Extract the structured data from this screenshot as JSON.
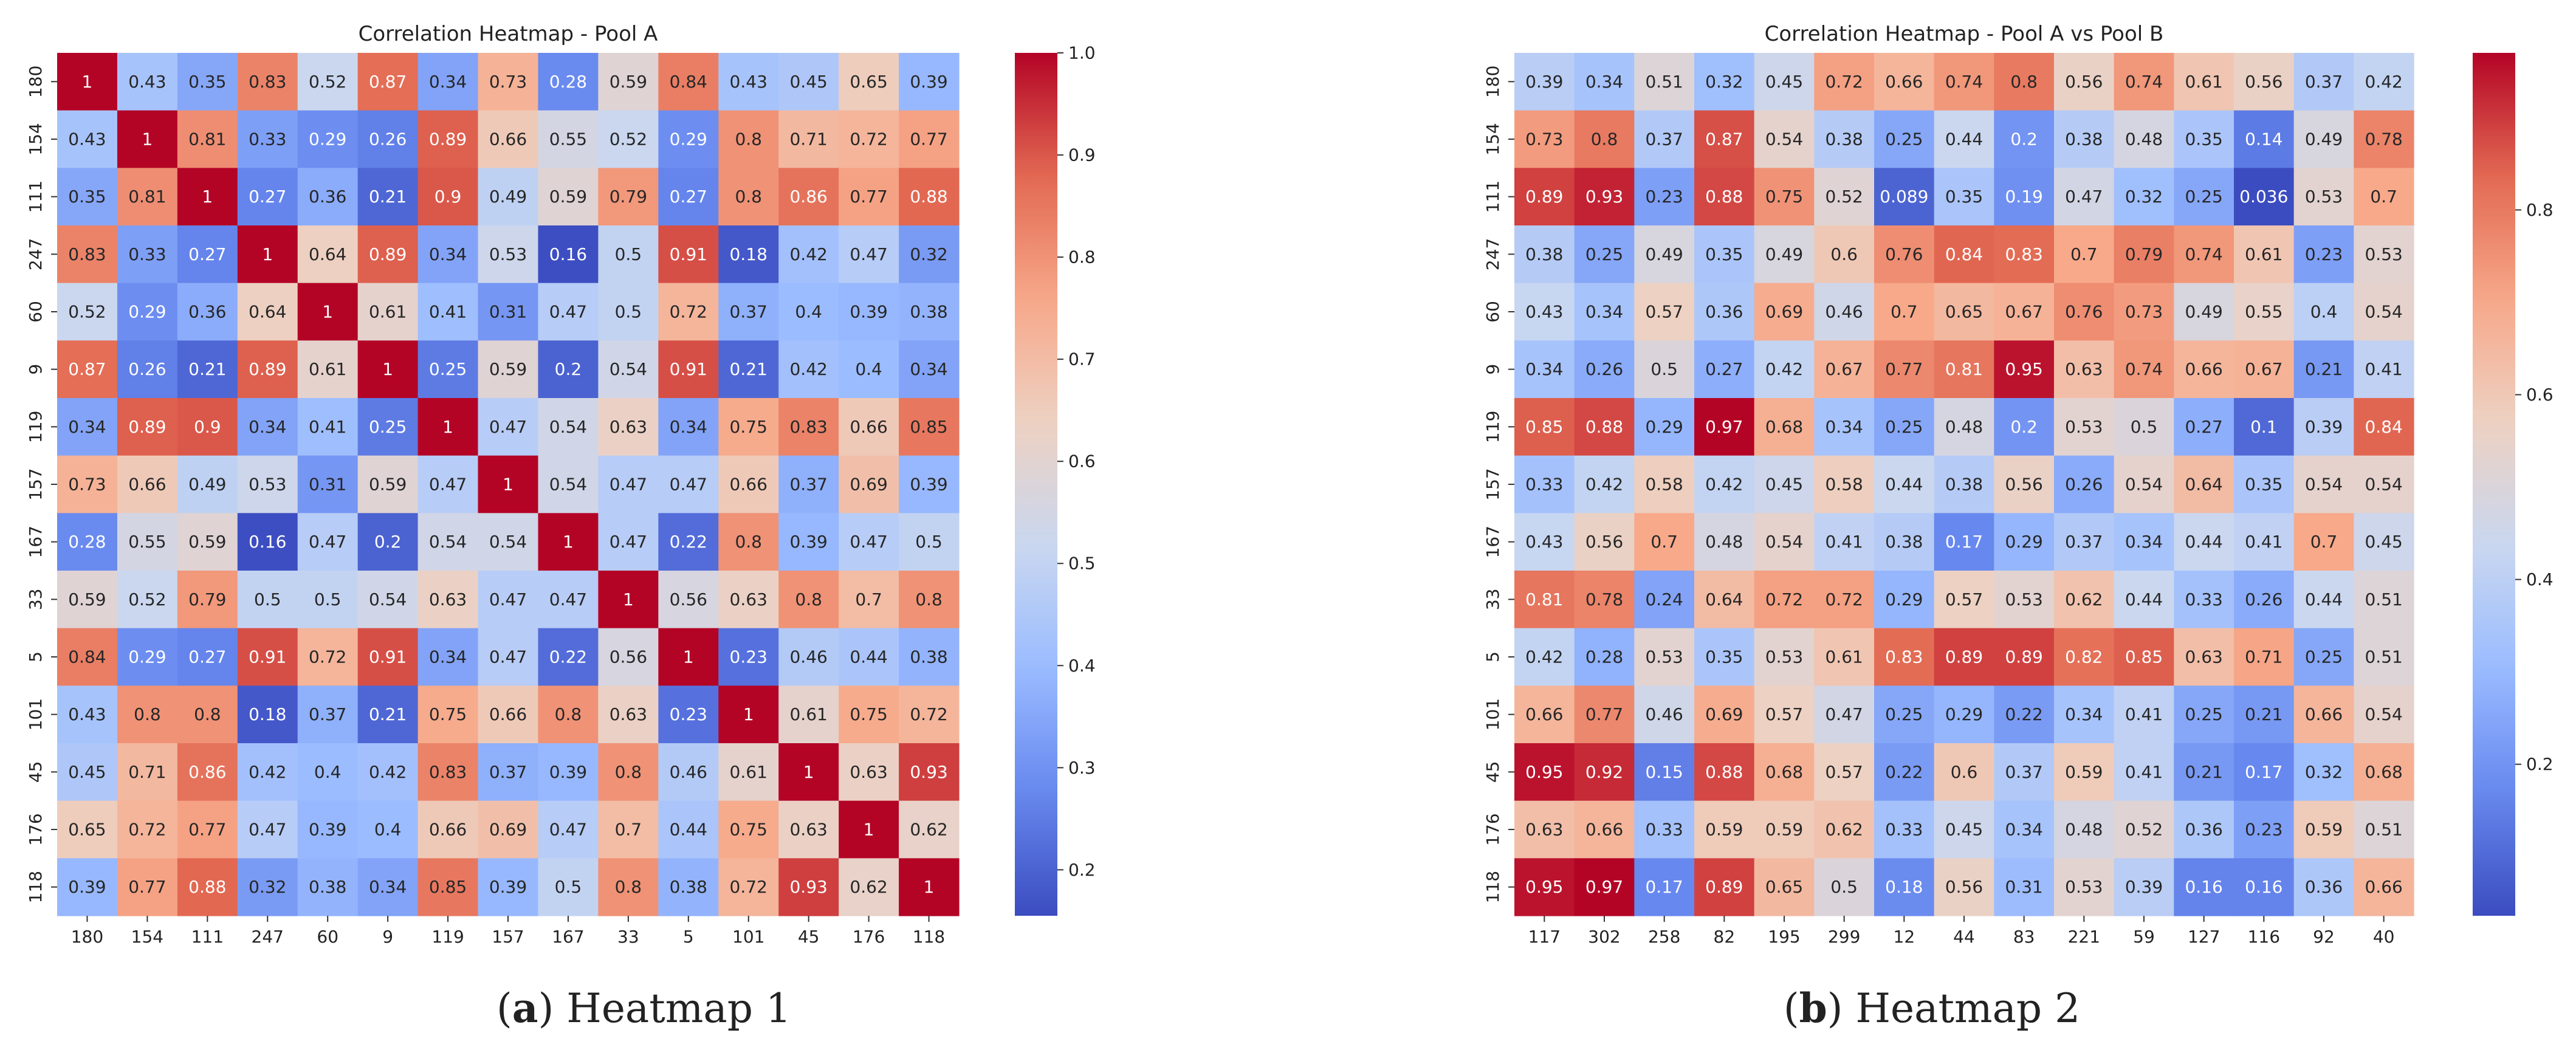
{
  "captions": [
    {
      "letter": "a",
      "text": "Heatmap 1"
    },
    {
      "letter": "b",
      "text": "Heatmap 2"
    }
  ],
  "colormap": {
    "name": "coolwarm",
    "stops": [
      "#3b4cc0",
      "#6788ee",
      "#9abbff",
      "#c9d7f0",
      "#edd1c2",
      "#f7a889",
      "#e26952",
      "#b40426"
    ]
  },
  "chart_data": [
    {
      "type": "heatmap",
      "title": "Correlation Heatmap - Pool A",
      "rows": [
        "180",
        "154",
        "111",
        "247",
        "60",
        "9",
        "119",
        "157",
        "167",
        "33",
        "5",
        "101",
        "45",
        "176",
        "118"
      ],
      "cols": [
        "180",
        "154",
        "111",
        "247",
        "60",
        "9",
        "119",
        "157",
        "167",
        "33",
        "5",
        "101",
        "45",
        "176",
        "118"
      ],
      "vmin": 0.155,
      "vmax": 1.0,
      "colorbar_ticks": [
        "0.2",
        "0.3",
        "0.4",
        "0.5",
        "0.6",
        "0.7",
        "0.8",
        "0.9",
        "1.0"
      ],
      "values": [
        [
          1,
          0.43,
          0.35,
          0.83,
          0.52,
          0.87,
          0.34,
          0.73,
          0.28,
          0.59,
          0.84,
          0.43,
          0.45,
          0.65,
          0.39
        ],
        [
          0.43,
          1,
          0.81,
          0.33,
          0.29,
          0.26,
          0.89,
          0.66,
          0.55,
          0.52,
          0.29,
          0.8,
          0.71,
          0.72,
          0.77
        ],
        [
          0.35,
          0.81,
          1,
          0.27,
          0.36,
          0.21,
          0.9,
          0.49,
          0.59,
          0.79,
          0.27,
          0.8,
          0.86,
          0.77,
          0.88
        ],
        [
          0.83,
          0.33,
          0.27,
          1,
          0.64,
          0.89,
          0.34,
          0.53,
          0.16,
          0.5,
          0.91,
          0.18,
          0.42,
          0.47,
          0.32
        ],
        [
          0.52,
          0.29,
          0.36,
          0.64,
          1,
          0.61,
          0.41,
          0.31,
          0.47,
          0.5,
          0.72,
          0.37,
          0.4,
          0.39,
          0.38
        ],
        [
          0.87,
          0.26,
          0.21,
          0.89,
          0.61,
          1,
          0.25,
          0.59,
          0.2,
          0.54,
          0.91,
          0.21,
          0.42,
          0.4,
          0.34
        ],
        [
          0.34,
          0.89,
          0.9,
          0.34,
          0.41,
          0.25,
          1,
          0.47,
          0.54,
          0.63,
          0.34,
          0.75,
          0.83,
          0.66,
          0.85
        ],
        [
          0.73,
          0.66,
          0.49,
          0.53,
          0.31,
          0.59,
          0.47,
          1,
          0.54,
          0.47,
          0.47,
          0.66,
          0.37,
          0.69,
          0.39
        ],
        [
          0.28,
          0.55,
          0.59,
          0.16,
          0.47,
          0.2,
          0.54,
          0.54,
          1,
          0.47,
          0.22,
          0.8,
          0.39,
          0.47,
          0.5
        ],
        [
          0.59,
          0.52,
          0.79,
          0.5,
          0.5,
          0.54,
          0.63,
          0.47,
          0.47,
          1,
          0.56,
          0.63,
          0.8,
          0.7,
          0.8
        ],
        [
          0.84,
          0.29,
          0.27,
          0.91,
          0.72,
          0.91,
          0.34,
          0.47,
          0.22,
          0.56,
          1,
          0.23,
          0.46,
          0.44,
          0.38
        ],
        [
          0.43,
          0.8,
          0.8,
          0.18,
          0.37,
          0.21,
          0.75,
          0.66,
          0.8,
          0.63,
          0.23,
          1,
          0.61,
          0.75,
          0.72
        ],
        [
          0.45,
          0.71,
          0.86,
          0.42,
          0.4,
          0.42,
          0.83,
          0.37,
          0.39,
          0.8,
          0.46,
          0.61,
          1,
          0.63,
          0.93
        ],
        [
          0.65,
          0.72,
          0.77,
          0.47,
          0.39,
          0.4,
          0.66,
          0.69,
          0.47,
          0.7,
          0.44,
          0.75,
          0.63,
          1,
          0.62
        ],
        [
          0.39,
          0.77,
          0.88,
          0.32,
          0.38,
          0.34,
          0.85,
          0.39,
          0.5,
          0.8,
          0.38,
          0.72,
          0.93,
          0.62,
          1
        ]
      ]
    },
    {
      "type": "heatmap",
      "title": "Correlation Heatmap - Pool A vs Pool B",
      "rows": [
        "180",
        "154",
        "111",
        "247",
        "60",
        "9",
        "119",
        "157",
        "167",
        "33",
        "5",
        "101",
        "45",
        "176",
        "118"
      ],
      "cols": [
        "117",
        "302",
        "258",
        "82",
        "195",
        "299",
        "12",
        "44",
        "83",
        "221",
        "59",
        "127",
        "116",
        "92",
        "40"
      ],
      "vmin": 0.036,
      "vmax": 0.97,
      "colorbar_ticks": [
        "0.2",
        "0.4",
        "0.6",
        "0.8"
      ],
      "values": [
        [
          0.39,
          0.34,
          0.51,
          0.32,
          0.45,
          0.72,
          0.66,
          0.74,
          0.8,
          0.56,
          0.74,
          0.61,
          0.56,
          0.37,
          0.42
        ],
        [
          0.73,
          0.8,
          0.37,
          0.87,
          0.54,
          0.38,
          0.25,
          0.44,
          0.2,
          0.38,
          0.48,
          0.35,
          0.14,
          0.49,
          0.78
        ],
        [
          0.89,
          0.93,
          0.23,
          0.88,
          0.75,
          0.52,
          0.089,
          0.35,
          0.19,
          0.47,
          0.32,
          0.25,
          0.036,
          0.53,
          0.7
        ],
        [
          0.38,
          0.25,
          0.49,
          0.35,
          0.49,
          0.6,
          0.76,
          0.84,
          0.83,
          0.7,
          0.79,
          0.74,
          0.61,
          0.23,
          0.53
        ],
        [
          0.43,
          0.34,
          0.57,
          0.36,
          0.69,
          0.46,
          0.7,
          0.65,
          0.67,
          0.76,
          0.73,
          0.49,
          0.55,
          0.4,
          0.54
        ],
        [
          0.34,
          0.26,
          0.5,
          0.27,
          0.42,
          0.67,
          0.77,
          0.81,
          0.95,
          0.63,
          0.74,
          0.66,
          0.67,
          0.21,
          0.41
        ],
        [
          0.85,
          0.88,
          0.29,
          0.97,
          0.68,
          0.34,
          0.25,
          0.48,
          0.2,
          0.53,
          0.5,
          0.27,
          0.1,
          0.39,
          0.84
        ],
        [
          0.33,
          0.42,
          0.58,
          0.42,
          0.45,
          0.58,
          0.44,
          0.38,
          0.56,
          0.26,
          0.54,
          0.64,
          0.35,
          0.54,
          0.54
        ],
        [
          0.43,
          0.56,
          0.7,
          0.48,
          0.54,
          0.41,
          0.38,
          0.17,
          0.29,
          0.37,
          0.34,
          0.44,
          0.41,
          0.7,
          0.45
        ],
        [
          0.81,
          0.78,
          0.24,
          0.64,
          0.72,
          0.72,
          0.29,
          0.57,
          0.53,
          0.62,
          0.44,
          0.33,
          0.26,
          0.44,
          0.51
        ],
        [
          0.42,
          0.28,
          0.53,
          0.35,
          0.53,
          0.61,
          0.83,
          0.89,
          0.89,
          0.82,
          0.85,
          0.63,
          0.71,
          0.25,
          0.51
        ],
        [
          0.66,
          0.77,
          0.46,
          0.69,
          0.57,
          0.47,
          0.25,
          0.29,
          0.22,
          0.34,
          0.41,
          0.25,
          0.21,
          0.66,
          0.54
        ],
        [
          0.95,
          0.92,
          0.15,
          0.88,
          0.68,
          0.57,
          0.22,
          0.6,
          0.37,
          0.59,
          0.41,
          0.21,
          0.17,
          0.32,
          0.68
        ],
        [
          0.63,
          0.66,
          0.33,
          0.59,
          0.59,
          0.62,
          0.33,
          0.45,
          0.34,
          0.48,
          0.52,
          0.36,
          0.23,
          0.59,
          0.51
        ],
        [
          0.95,
          0.97,
          0.17,
          0.89,
          0.65,
          0.5,
          0.18,
          0.56,
          0.31,
          0.53,
          0.39,
          0.16,
          0.16,
          0.36,
          0.66
        ]
      ]
    }
  ]
}
